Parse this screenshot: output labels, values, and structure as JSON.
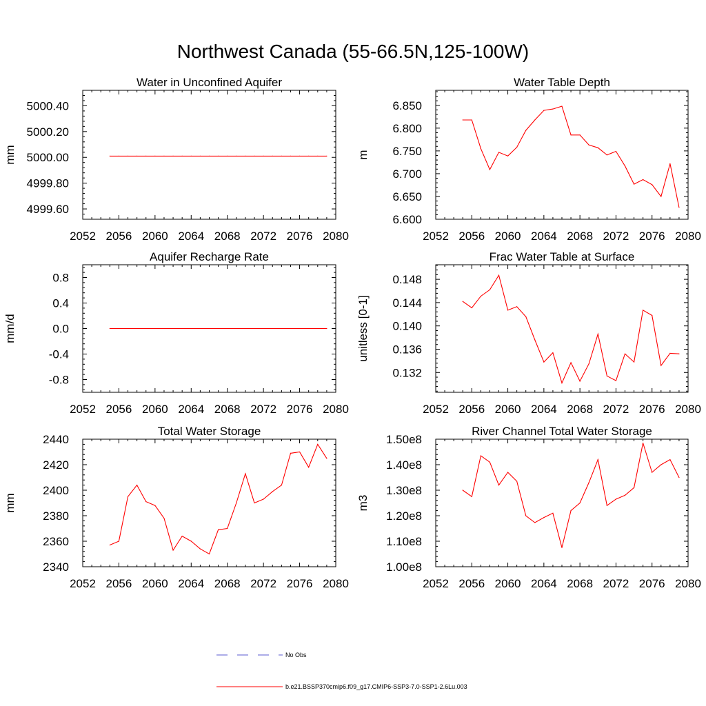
{
  "figure": {
    "title": "Northwest Canada (55-66.5N,125-100W)"
  },
  "legend": {
    "items": [
      {
        "label": "No Obs",
        "color": "#5a5ad0",
        "style": "dashed"
      },
      {
        "label": "b.e21.BSSP370cmip6.f09_g17.CMIP6-SSP3-7.0-SSP1-2.6Lu.003",
        "color": "#ff0000",
        "style": "solid"
      }
    ]
  },
  "chart_data": [
    {
      "type": "line",
      "title": "Water in Unconfined Aquifer",
      "xlabel": "",
      "ylabel": "mm",
      "xlim": [
        2052,
        2080
      ],
      "ylim": [
        4999.52,
        5000.52
      ],
      "xticks": [
        "2052",
        "2056",
        "2060",
        "2064",
        "2068",
        "2072",
        "2076",
        "2080"
      ],
      "yticks": [
        "4999.60",
        "4999.80",
        "5000.00",
        "5000.20",
        "5000.40"
      ],
      "series": [
        {
          "color": "#ff0000",
          "x": [
            2055,
            2056,
            2057,
            2058,
            2059,
            2060,
            2061,
            2062,
            2063,
            2064,
            2065,
            2066,
            2067,
            2068,
            2069,
            2070,
            2071,
            2072,
            2073,
            2074,
            2075,
            2076,
            2077,
            2078,
            2079
          ],
          "values": [
            5000.01,
            5000.01,
            5000.01,
            5000.01,
            5000.01,
            5000.01,
            5000.01,
            5000.01,
            5000.01,
            5000.01,
            5000.01,
            5000.01,
            5000.01,
            5000.01,
            5000.01,
            5000.01,
            5000.01,
            5000.01,
            5000.01,
            5000.01,
            5000.01,
            5000.01,
            5000.01,
            5000.01,
            5000.01
          ]
        }
      ]
    },
    {
      "type": "line",
      "title": "Water Table Depth",
      "xlabel": "",
      "ylabel": "m",
      "xlim": [
        2052,
        2080
      ],
      "ylim": [
        6.6,
        6.883
      ],
      "xticks": [
        "2052",
        "2056",
        "2060",
        "2064",
        "2068",
        "2072",
        "2076",
        "2080"
      ],
      "yticks": [
        "6.600",
        "6.650",
        "6.700",
        "6.750",
        "6.800",
        "6.850"
      ],
      "series": [
        {
          "color": "#ff0000",
          "x": [
            2055,
            2056,
            2057,
            2058,
            2059,
            2060,
            2061,
            2062,
            2063,
            2064,
            2065,
            2066,
            2067,
            2068,
            2069,
            2070,
            2071,
            2072,
            2073,
            2074,
            2075,
            2076,
            2077,
            2078,
            2079
          ],
          "values": [
            6.818,
            6.818,
            6.755,
            6.709,
            6.747,
            6.739,
            6.758,
            6.795,
            6.818,
            6.839,
            6.842,
            6.848,
            6.785,
            6.785,
            6.763,
            6.757,
            6.741,
            6.749,
            6.717,
            6.677,
            6.687,
            6.676,
            6.65,
            6.722,
            6.626
          ]
        }
      ]
    },
    {
      "type": "line",
      "title": "Aquifer Recharge Rate",
      "xlabel": "",
      "ylabel": "mm/d",
      "xlim": [
        2052,
        2080
      ],
      "ylim": [
        -1.0,
        1.0
      ],
      "xticks": [
        "2052",
        "2056",
        "2060",
        "2064",
        "2068",
        "2072",
        "2076",
        "2080"
      ],
      "yticks": [
        "-0.8",
        "-0.4",
        "0.0",
        "0.4",
        "0.8"
      ],
      "series": [
        {
          "color": "#ff0000",
          "x": [
            2055,
            2056,
            2057,
            2058,
            2059,
            2060,
            2061,
            2062,
            2063,
            2064,
            2065,
            2066,
            2067,
            2068,
            2069,
            2070,
            2071,
            2072,
            2073,
            2074,
            2075,
            2076,
            2077,
            2078,
            2079
          ],
          "values": [
            0,
            0,
            0,
            0,
            0,
            0,
            0,
            0,
            0,
            0,
            0,
            0,
            0,
            0,
            0,
            0,
            0,
            0,
            0,
            0,
            0,
            0,
            0,
            0,
            0
          ]
        }
      ]
    },
    {
      "type": "line",
      "title": "Frac Water Table at Surface",
      "xlabel": "",
      "ylabel": "unitless [0-1]",
      "xlim": [
        2052,
        2080
      ],
      "ylim": [
        0.1286,
        0.1505
      ],
      "xticks": [
        "2052",
        "2056",
        "2060",
        "2064",
        "2068",
        "2072",
        "2076",
        "2080"
      ],
      "yticks": [
        "0.132",
        "0.136",
        "0.140",
        "0.144",
        "0.148"
      ],
      "series": [
        {
          "color": "#ff0000",
          "x": [
            2055,
            2056,
            2057,
            2058,
            2059,
            2060,
            2061,
            2062,
            2063,
            2064,
            2065,
            2066,
            2067,
            2068,
            2069,
            2070,
            2071,
            2072,
            2073,
            2074,
            2075,
            2076,
            2077,
            2078,
            2079
          ],
          "values": [
            0.1442,
            0.1431,
            0.1451,
            0.1462,
            0.1487,
            0.1427,
            0.1433,
            0.1416,
            0.1376,
            0.1338,
            0.1354,
            0.1302,
            0.1337,
            0.1305,
            0.1335,
            0.1386,
            0.1314,
            0.1306,
            0.1352,
            0.1338,
            0.1427,
            0.1418,
            0.1332,
            0.1353,
            0.1352
          ]
        }
      ]
    },
    {
      "type": "line",
      "title": "Total Water Storage",
      "xlabel": "",
      "ylabel": "mm",
      "xlim": [
        2052,
        2080
      ],
      "ylim": [
        2340,
        2440
      ],
      "xticks": [
        "2052",
        "2056",
        "2060",
        "2064",
        "2068",
        "2072",
        "2076",
        "2080"
      ],
      "yticks": [
        "2340",
        "2360",
        "2380",
        "2400",
        "2420",
        "2440"
      ],
      "series": [
        {
          "color": "#ff0000",
          "x": [
            2055,
            2056,
            2057,
            2058,
            2059,
            2060,
            2061,
            2062,
            2063,
            2064,
            2065,
            2066,
            2067,
            2068,
            2069,
            2070,
            2071,
            2072,
            2073,
            2074,
            2075,
            2076,
            2077,
            2078,
            2079
          ],
          "values": [
            2357,
            2360,
            2395,
            2404,
            2391,
            2388,
            2378,
            2353,
            2364,
            2360,
            2354,
            2350,
            2369,
            2370,
            2390,
            2413,
            2390,
            2393,
            2399,
            2404,
            2429,
            2430,
            2418,
            2436,
            2425
          ]
        }
      ]
    },
    {
      "type": "line",
      "title": "River Channel Total Water Storage",
      "xlabel": "",
      "ylabel": "m3",
      "xlim": [
        2052,
        2080
      ],
      "ylim": [
        100000000,
        150000000
      ],
      "xticks": [
        "2052",
        "2056",
        "2060",
        "2064",
        "2068",
        "2072",
        "2076",
        "2080"
      ],
      "yticks": [
        "1.00e8",
        "1.10e8",
        "1.20e8",
        "1.30e8",
        "1.40e8",
        "1.50e8"
      ],
      "series": [
        {
          "color": "#ff0000",
          "x": [
            2055,
            2056,
            2057,
            2058,
            2059,
            2060,
            2061,
            2062,
            2063,
            2064,
            2065,
            2066,
            2067,
            2068,
            2069,
            2070,
            2071,
            2072,
            2073,
            2074,
            2075,
            2076,
            2077,
            2078,
            2079
          ],
          "values": [
            130000000,
            127500000,
            143500000,
            141000000,
            132000000,
            137000000,
            133500000,
            120000000,
            117300000,
            119300000,
            121000000,
            107500000,
            122000000,
            125000000,
            133000000,
            142000000,
            124000000,
            126500000,
            128000000,
            131000000,
            148500000,
            137000000,
            140000000,
            142000000,
            135000000
          ]
        }
      ]
    }
  ]
}
